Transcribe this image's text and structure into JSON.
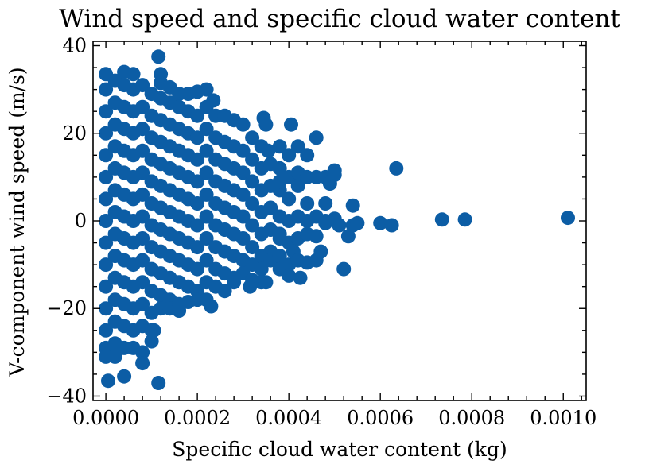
{
  "chart_data": {
    "type": "scatter",
    "title": "Wind speed and specific cloud water content",
    "xlabel": "Specific cloud water content (kg)",
    "ylabel": "V-component wind speed (m/s)",
    "xlim": [
      -2.8e-05,
      0.00105
    ],
    "ylim": [
      -41,
      41
    ],
    "xticks": [
      0.0,
      0.0002,
      0.0004,
      0.0006,
      0.0008,
      0.001
    ],
    "xtick_labels": [
      "0.0000",
      "0.0002",
      "0.0004",
      "0.0006",
      "0.0008",
      "0.0010"
    ],
    "yticks": [
      -40,
      -20,
      0,
      20,
      40
    ],
    "ytick_labels": [
      "−40",
      "−20",
      "0",
      "20",
      "40"
    ],
    "grid": false,
    "legend": "none",
    "series": [
      {
        "color": "#0C5DA5",
        "points": [
          [
            0.0,
            33.5
          ],
          [
            0.0,
            30
          ],
          [
            0.0,
            25
          ],
          [
            0.0,
            20
          ],
          [
            0.0,
            15
          ],
          [
            0.0,
            10
          ],
          [
            0.0,
            5
          ],
          [
            0.0,
            0
          ],
          [
            0.0,
            -5
          ],
          [
            0.0,
            -10
          ],
          [
            0.0,
            -15
          ],
          [
            0.0,
            -20
          ],
          [
            0.0,
            -25
          ],
          [
            0.0,
            -29
          ],
          [
            0.0,
            -31
          ],
          [
            5e-06,
            -36.5
          ],
          [
            2e-05,
            32
          ],
          [
            2e-05,
            27
          ],
          [
            2e-05,
            22
          ],
          [
            2e-05,
            17
          ],
          [
            2e-05,
            12
          ],
          [
            2e-05,
            7
          ],
          [
            2e-05,
            2
          ],
          [
            2e-05,
            -3
          ],
          [
            2e-05,
            -8
          ],
          [
            2e-05,
            -13
          ],
          [
            2e-05,
            -18
          ],
          [
            2e-05,
            -23
          ],
          [
            2e-05,
            -28
          ],
          [
            2e-05,
            -31
          ],
          [
            4e-05,
            31
          ],
          [
            4e-05,
            26
          ],
          [
            4e-05,
            21
          ],
          [
            4e-05,
            16
          ],
          [
            4e-05,
            11
          ],
          [
            4e-05,
            6
          ],
          [
            4e-05,
            1
          ],
          [
            4e-05,
            -4
          ],
          [
            4e-05,
            -9
          ],
          [
            4e-05,
            -14
          ],
          [
            4e-05,
            -19
          ],
          [
            4e-05,
            -24
          ],
          [
            4e-05,
            -29
          ],
          [
            4e-05,
            -35.5
          ],
          [
            6e-05,
            30
          ],
          [
            6e-05,
            25
          ],
          [
            6e-05,
            20
          ],
          [
            6e-05,
            15
          ],
          [
            6e-05,
            10
          ],
          [
            6e-05,
            5
          ],
          [
            6e-05,
            0
          ],
          [
            6e-05,
            -5
          ],
          [
            6e-05,
            -10
          ],
          [
            6e-05,
            -15
          ],
          [
            6e-05,
            -20
          ],
          [
            6e-05,
            -25
          ],
          [
            6e-05,
            -29
          ],
          [
            4e-05,
            34
          ],
          [
            6e-05,
            33.5
          ],
          [
            8e-05,
            31
          ],
          [
            8e-05,
            26
          ],
          [
            8e-05,
            21
          ],
          [
            8e-05,
            16
          ],
          [
            8e-05,
            11
          ],
          [
            8e-05,
            6
          ],
          [
            8e-05,
            1
          ],
          [
            8e-05,
            -4
          ],
          [
            8e-05,
            -9
          ],
          [
            8e-05,
            -14
          ],
          [
            8e-05,
            -19
          ],
          [
            8e-05,
            -24
          ],
          [
            8e-05,
            -30
          ],
          [
            8e-05,
            -32.5
          ],
          [
            0.0001,
            29
          ],
          [
            0.0001,
            24
          ],
          [
            0.0001,
            19
          ],
          [
            0.0001,
            14
          ],
          [
            0.0001,
            9
          ],
          [
            0.0001,
            4
          ],
          [
            0.0001,
            -1
          ],
          [
            0.0001,
            -6
          ],
          [
            0.0001,
            -11
          ],
          [
            0.0001,
            -16
          ],
          [
            0.0001,
            -21
          ],
          [
            0.0001,
            -25
          ],
          [
            0.0001,
            -27.5
          ],
          [
            0.000115,
            37.5
          ],
          [
            0.00012,
            33.5
          ],
          [
            0.00012,
            31.5
          ],
          [
            0.000105,
            -25
          ],
          [
            0.000115,
            -37
          ],
          [
            0.00012,
            28
          ],
          [
            0.00012,
            23
          ],
          [
            0.00012,
            18
          ],
          [
            0.00012,
            13
          ],
          [
            0.00012,
            8
          ],
          [
            0.00012,
            3
          ],
          [
            0.00012,
            -2
          ],
          [
            0.00012,
            -7
          ],
          [
            0.00012,
            -12
          ],
          [
            0.00012,
            -17
          ],
          [
            0.00012,
            -20
          ],
          [
            0.00014,
            30.5
          ],
          [
            0.00014,
            27
          ],
          [
            0.00014,
            22
          ],
          [
            0.00014,
            17
          ],
          [
            0.00014,
            12
          ],
          [
            0.00014,
            7
          ],
          [
            0.00014,
            2
          ],
          [
            0.00014,
            -3
          ],
          [
            0.00014,
            -8
          ],
          [
            0.00014,
            -13
          ],
          [
            0.00014,
            -18
          ],
          [
            0.00014,
            -20
          ],
          [
            0.00016,
            29
          ],
          [
            0.00016,
            26
          ],
          [
            0.00016,
            21
          ],
          [
            0.00016,
            16
          ],
          [
            0.00016,
            11
          ],
          [
            0.00016,
            6
          ],
          [
            0.00016,
            1
          ],
          [
            0.00016,
            -4
          ],
          [
            0.00016,
            -9
          ],
          [
            0.00016,
            -14
          ],
          [
            0.00016,
            -19
          ],
          [
            0.00016,
            -20.5
          ],
          [
            0.00018,
            29
          ],
          [
            0.00018,
            25
          ],
          [
            0.00018,
            20
          ],
          [
            0.00018,
            15
          ],
          [
            0.00018,
            10
          ],
          [
            0.00018,
            5
          ],
          [
            0.00018,
            0
          ],
          [
            0.00018,
            -5
          ],
          [
            0.00018,
            -10
          ],
          [
            0.00018,
            -15
          ],
          [
            0.00018,
            -18.5
          ],
          [
            0.0002,
            29.5
          ],
          [
            0.0002,
            24
          ],
          [
            0.0002,
            19
          ],
          [
            0.0002,
            14
          ],
          [
            0.0002,
            9
          ],
          [
            0.0002,
            4
          ],
          [
            0.0002,
            -1
          ],
          [
            0.0002,
            -6
          ],
          [
            0.0002,
            -11
          ],
          [
            0.0002,
            -16
          ],
          [
            0.0002,
            -18
          ],
          [
            0.00022,
            30
          ],
          [
            0.00022,
            26
          ],
          [
            0.00022,
            21
          ],
          [
            0.00022,
            16
          ],
          [
            0.00022,
            11
          ],
          [
            0.00022,
            6
          ],
          [
            0.00022,
            1
          ],
          [
            0.00022,
            -4
          ],
          [
            0.00022,
            -9
          ],
          [
            0.00022,
            -14
          ],
          [
            0.00022,
            -18
          ],
          [
            0.000235,
            27.5
          ],
          [
            0.00023,
            -19.5
          ],
          [
            0.00024,
            24
          ],
          [
            0.00024,
            19
          ],
          [
            0.00024,
            14
          ],
          [
            0.00024,
            9
          ],
          [
            0.00024,
            4
          ],
          [
            0.00024,
            -1
          ],
          [
            0.00024,
            -6
          ],
          [
            0.00024,
            -11
          ],
          [
            0.00024,
            -15
          ],
          [
            0.00026,
            24
          ],
          [
            0.00026,
            18
          ],
          [
            0.00026,
            13
          ],
          [
            0.00026,
            8
          ],
          [
            0.00026,
            3
          ],
          [
            0.00026,
            -2
          ],
          [
            0.00026,
            -7
          ],
          [
            0.00026,
            -12
          ],
          [
            0.00026,
            -16
          ],
          [
            0.00028,
            23
          ],
          [
            0.00028,
            17
          ],
          [
            0.00028,
            12
          ],
          [
            0.00028,
            7
          ],
          [
            0.00028,
            2
          ],
          [
            0.00028,
            -3
          ],
          [
            0.00028,
            -8
          ],
          [
            0.00028,
            -13
          ],
          [
            0.00028,
            -14
          ],
          [
            0.0003,
            22
          ],
          [
            0.0003,
            16
          ],
          [
            0.0003,
            11
          ],
          [
            0.0003,
            6
          ],
          [
            0.0003,
            1
          ],
          [
            0.0003,
            -4
          ],
          [
            0.0003,
            -9
          ],
          [
            0.0003,
            -12
          ],
          [
            0.00032,
            19
          ],
          [
            0.00032,
            14
          ],
          [
            0.00032,
            9
          ],
          [
            0.00032,
            4
          ],
          [
            0.00032,
            -1
          ],
          [
            0.00032,
            -6
          ],
          [
            0.00032,
            -10
          ],
          [
            0.000315,
            -15
          ],
          [
            0.00032,
            -13.5
          ],
          [
            0.00034,
            17
          ],
          [
            0.00034,
            12
          ],
          [
            0.00034,
            7
          ],
          [
            0.00034,
            2
          ],
          [
            0.00034,
            -3
          ],
          [
            0.00034,
            -8
          ],
          [
            0.00034,
            -11
          ],
          [
            0.00034,
            -14
          ],
          [
            0.000345,
            23.5
          ],
          [
            0.00035,
            22
          ],
          [
            0.000355,
            16
          ],
          [
            0.00035,
            -14
          ],
          [
            0.00036,
            13
          ],
          [
            0.00036,
            8
          ],
          [
            0.00036,
            3
          ],
          [
            0.00036,
            -2
          ],
          [
            0.00036,
            -7
          ],
          [
            0.00036,
            -9
          ],
          [
            0.00038,
            17
          ],
          [
            0.00038,
            12
          ],
          [
            0.00038,
            7
          ],
          [
            0.00038,
            1
          ],
          [
            0.00038,
            -4
          ],
          [
            0.00038,
            -8
          ],
          [
            0.00038,
            -11
          ],
          [
            0.00038,
            9
          ],
          [
            0.00038,
            -3
          ],
          [
            0.0004,
            15
          ],
          [
            0.0004,
            10
          ],
          [
            0.0004,
            5
          ],
          [
            0.0004,
            0
          ],
          [
            0.0004,
            -5
          ],
          [
            0.0004,
            -10
          ],
          [
            0.0004,
            -12.5
          ],
          [
            0.000405,
            22
          ],
          [
            0.00041,
            -7
          ],
          [
            0.00042,
            17
          ],
          [
            0.00042,
            11
          ],
          [
            0.00042,
            8
          ],
          [
            0.00042,
            1
          ],
          [
            0.00042,
            -4
          ],
          [
            0.00042,
            -9
          ],
          [
            0.000425,
            -13
          ],
          [
            0.00044,
            15
          ],
          [
            0.00044,
            10
          ],
          [
            0.00044,
            4
          ],
          [
            0.00044,
            0
          ],
          [
            0.00044,
            -3
          ],
          [
            0.00044,
            -9.5
          ],
          [
            0.00046,
            19
          ],
          [
            0.00046,
            10
          ],
          [
            0.00046,
            1
          ],
          [
            0.00046,
            -3.5
          ],
          [
            0.00046,
            -9
          ],
          [
            0.00047,
            -7
          ],
          [
            0.00048,
            10
          ],
          [
            0.00048,
            4
          ],
          [
            0.00048,
            0
          ],
          [
            0.00048,
            -0.5
          ],
          [
            0.00049,
            8.5
          ],
          [
            0.0005,
            11.5
          ],
          [
            0.0005,
            10.5
          ],
          [
            0.0005,
            0.5
          ],
          [
            0.00051,
            -1
          ],
          [
            0.00052,
            -11
          ],
          [
            0.00053,
            -3.5
          ],
          [
            0.00054,
            -1
          ],
          [
            0.00054,
            3.5
          ],
          [
            0.00055,
            -0.5
          ],
          [
            0.0006,
            -0.5
          ],
          [
            0.000625,
            -1
          ],
          [
            0.000635,
            12
          ],
          [
            0.000735,
            0.3
          ],
          [
            0.000785,
            0.3
          ],
          [
            0.00101,
            0.7
          ]
        ]
      }
    ]
  }
}
